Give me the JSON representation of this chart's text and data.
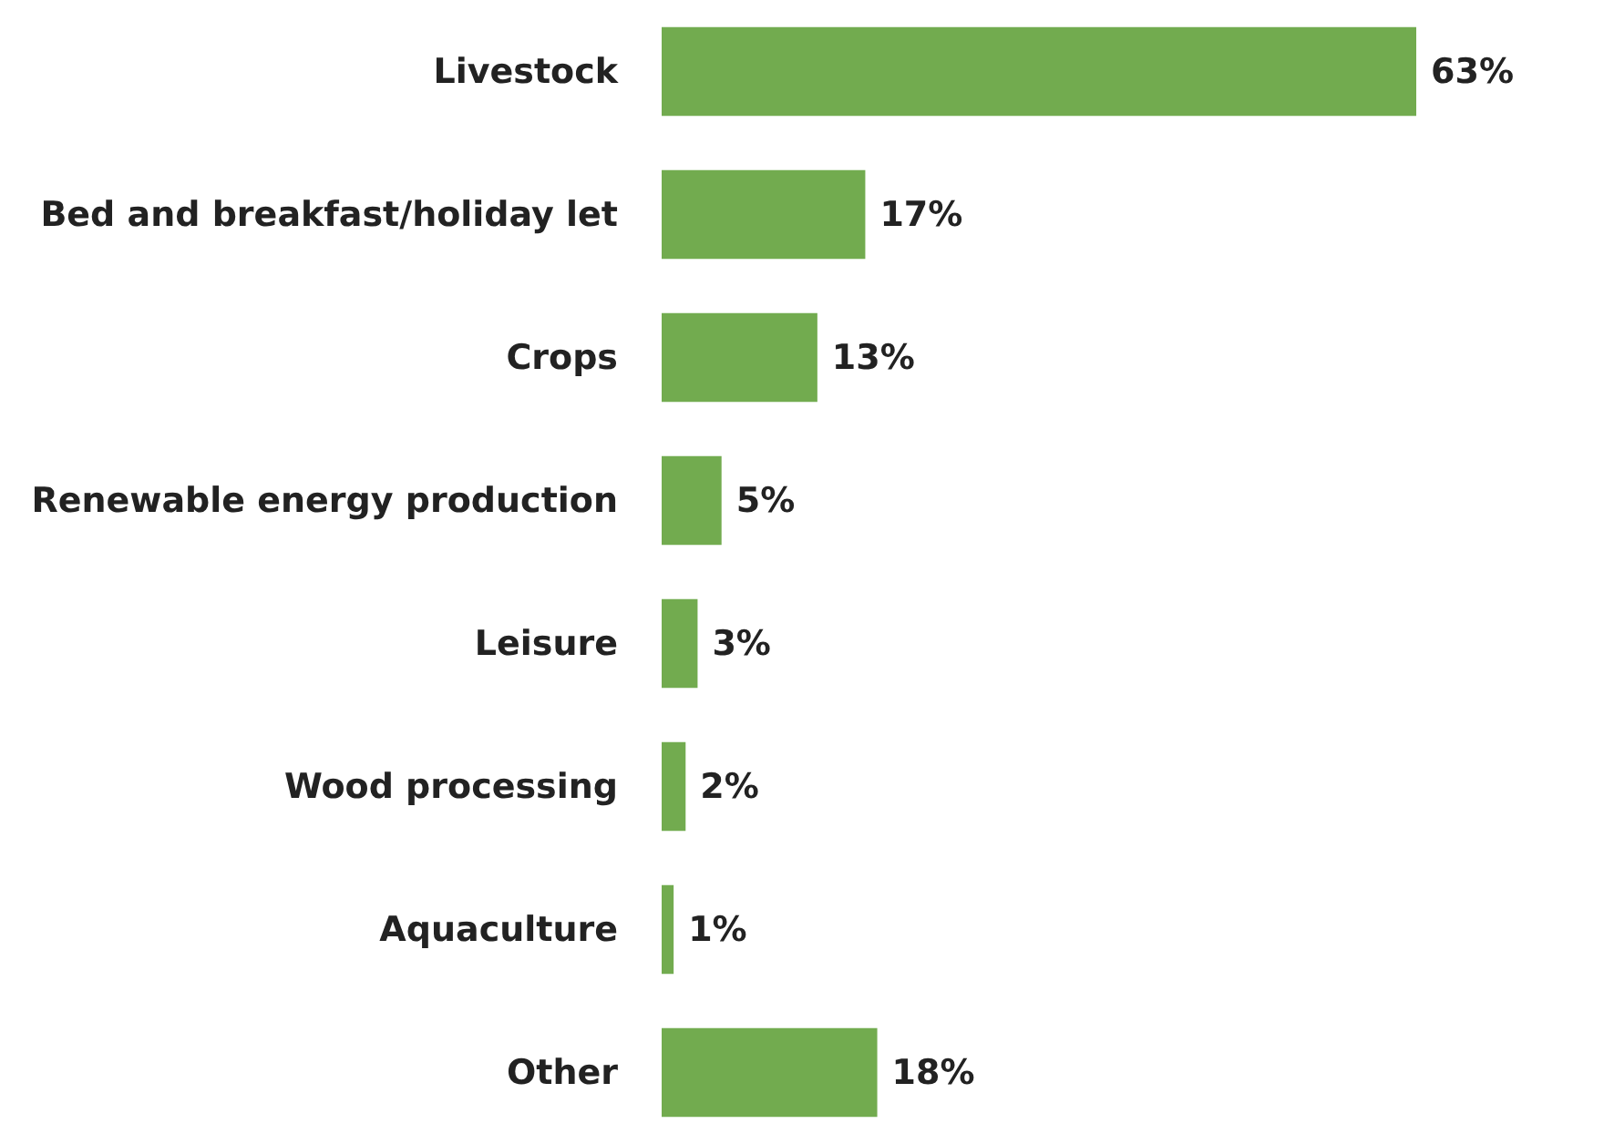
{
  "chart_data": {
    "type": "bar",
    "orientation": "horizontal",
    "categories": [
      "Livestock",
      "Bed and breakfast/holiday let",
      "Crops",
      "Renewable energy production",
      "Leisure",
      "Wood processing",
      "Aquaculture",
      "Other"
    ],
    "values": [
      63,
      17,
      13,
      5,
      3,
      2,
      1,
      18
    ],
    "value_labels": [
      "63%",
      "17%",
      "13%",
      "5%",
      "3%",
      "2%",
      "1%",
      "18%"
    ],
    "color": "#72ab4f",
    "tick_labels": "y"
  }
}
